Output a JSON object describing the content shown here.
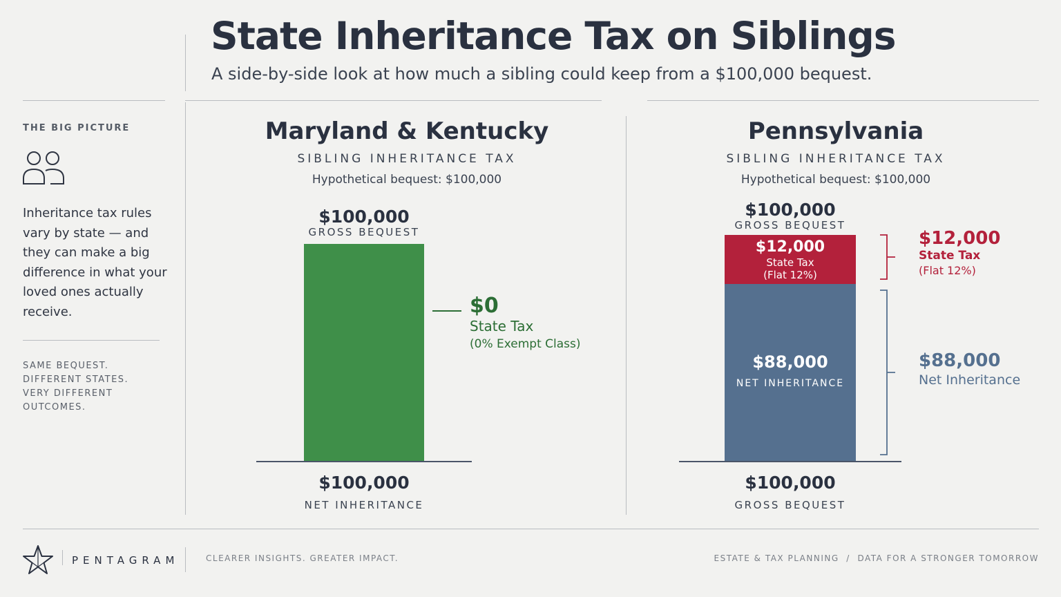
{
  "header": {
    "title": "State Inheritance Tax on Siblings",
    "subtitle": "A side-by-side look at how much a sibling could keep from a $100,000 bequest."
  },
  "sidebar": {
    "heading": "THE BIG PICTURE",
    "icon": "people-icon",
    "body": "Inheritance tax rules vary by state — and they can make a big difference in what your loved ones actually receive.",
    "tagline": [
      "SAME BEQUEST.",
      "DIFFERENT STATES.",
      "VERY DIFFERENT",
      "OUTCOMES."
    ]
  },
  "colors": {
    "green": "#3f8f49",
    "green_text": "#2c6e35",
    "red": "#b3213b",
    "blue": "#55708f"
  },
  "chart_data": [
    {
      "type": "bar",
      "title": "Maryland & Kentucky",
      "subtitle": "SIBLING INHERITANCE TAX",
      "note": "Hypothetical bequest: $100,000",
      "ylim": [
        0,
        100000
      ],
      "top_value_label": "$100,000",
      "top_caption": "GROSS BEQUEST",
      "series": [
        {
          "name": "State Tax",
          "value": 0,
          "value_label": "$0",
          "detail": "(0% Exempt Class)",
          "color": "#3f8f49"
        },
        {
          "name": "NET INHERITANCE",
          "value": 100000,
          "color": "#3f8f49"
        }
      ],
      "bottom_value_label": "$100,000",
      "bottom_caption": "NET INHERITANCE"
    },
    {
      "type": "bar",
      "title": "Pennsylvania",
      "subtitle": "SIBLING INHERITANCE TAX",
      "note": "Hypothetical bequest: $100,000",
      "ylim": [
        0,
        100000
      ],
      "top_value_label": "$100,000",
      "top_caption": "GROSS BEQUEST",
      "series": [
        {
          "name": "State Tax",
          "value": 12000,
          "value_label": "$12,000",
          "detail": "(Flat 12%)",
          "color": "#b3213b"
        },
        {
          "name": "NET INHERITANCE",
          "value": 88000,
          "value_label": "$88,000",
          "side_name": "Net Inheritance",
          "color": "#55708f"
        }
      ],
      "bottom_value_label": "$100,000",
      "bottom_caption": "GROSS BEQUEST"
    }
  ],
  "footer": {
    "brand": "PENTAGRAM",
    "logo_icon": "star-icon",
    "tagline": "CLEARER INSIGHTS. GREATER IMPACT.",
    "right": "ESTATE & TAX PLANNING  /  DATA FOR A STRONGER TOMORROW"
  }
}
